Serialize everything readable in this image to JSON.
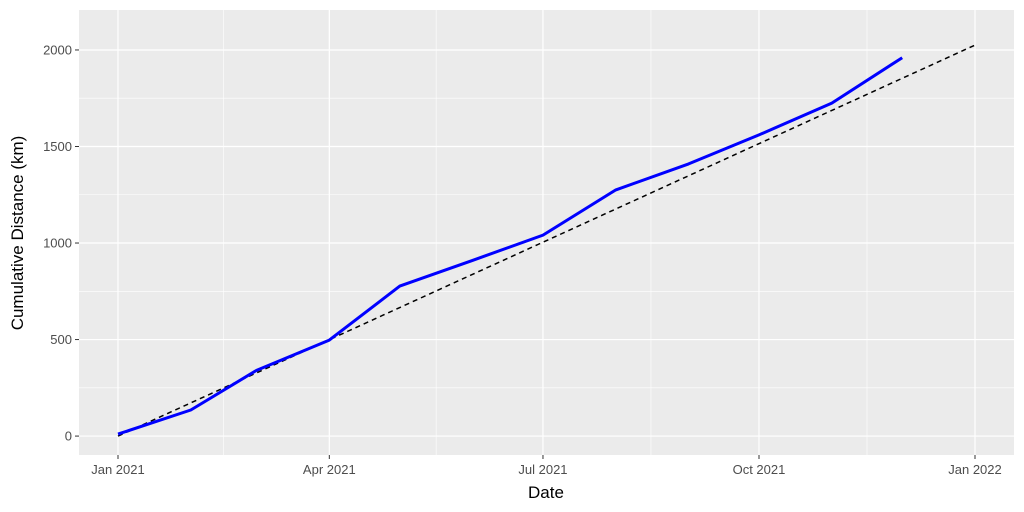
{
  "chart_data": {
    "type": "line",
    "x_label": "Date",
    "y_label": "Cumulative Distance (km)",
    "series": [
      {
        "color": "#0000ff",
        "linestyle": "solid",
        "x": [
          "2021-01",
          "2021-02",
          "2021-03",
          "2021-04",
          "2021-05",
          "2021-06",
          "2021-07",
          "2021-08",
          "2021-09",
          "2021-10",
          "2021-11",
          "2021-12"
        ],
        "values": [
          10,
          135,
          340,
          497,
          777,
          910,
          1041,
          1275,
          1410,
          1560,
          1725,
          1960
        ]
      },
      {
        "color": "#000000",
        "linestyle": "dashed",
        "x": [
          "2021-01",
          "2022-01"
        ],
        "values": [
          0,
          2025
        ]
      }
    ],
    "ylim": [
      -98,
      2207
    ],
    "yticks": [
      0,
      500,
      1000,
      1500,
      2000
    ],
    "xticks": [
      {
        "value": "2021-01",
        "label": "Jan 2021"
      },
      {
        "value": "2021-04",
        "label": "Apr 2021"
      },
      {
        "value": "2021-07",
        "label": "Jul 2021"
      },
      {
        "value": "2021-10",
        "label": "Oct 2021"
      },
      {
        "value": "2022-01",
        "label": "Jan 2022"
      }
    ],
    "grid": true
  }
}
